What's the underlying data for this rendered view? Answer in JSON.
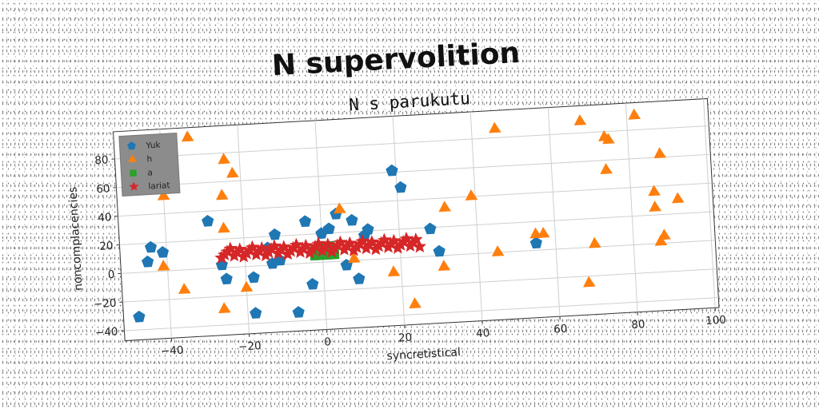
{
  "chart_data": {
    "type": "scatter",
    "title": "N supervolition",
    "subtitle": "N s parukutu",
    "xlabel": "syncretistical",
    "ylabel": "noncomplacencies",
    "xlim": [
      -52,
      101
    ],
    "ylim": [
      -47,
      99
    ],
    "xticks": [
      -40,
      -20,
      0,
      20,
      40,
      60,
      80,
      100
    ],
    "yticks": [
      -40,
      -20,
      0,
      20,
      40,
      60,
      80
    ],
    "grid": true,
    "legend_position": "top-left",
    "series": [
      {
        "name": "Yuk",
        "marker": "pentagon",
        "color": "#1f77b4",
        "points": [
          [
            -48,
            -31
          ],
          [
            -44,
            17
          ],
          [
            -45,
            7
          ],
          [
            -41,
            13
          ],
          [
            -29,
            33
          ],
          [
            -26,
            2
          ],
          [
            -25,
            -8
          ],
          [
            -18,
            -8
          ],
          [
            -18,
            -33
          ],
          [
            -14,
            12
          ],
          [
            -13,
            1
          ],
          [
            -12,
            21
          ],
          [
            -11,
            3
          ],
          [
            -7,
            -34
          ],
          [
            -4,
            29
          ],
          [
            -3,
            -15
          ],
          [
            0,
            20
          ],
          [
            2,
            23
          ],
          [
            4,
            33
          ],
          [
            6,
            -3
          ],
          [
            8,
            28
          ],
          [
            9,
            -13
          ],
          [
            11,
            17
          ],
          [
            12,
            21
          ],
          [
            19,
            61
          ],
          [
            21,
            49
          ],
          [
            28,
            19
          ],
          [
            30,
            3
          ],
          [
            55,
            5
          ]
        ]
      },
      {
        "name": "h",
        "marker": "triangle",
        "color": "#ff7f0e",
        "points": [
          [
            -33,
            92
          ],
          [
            -24,
            75
          ],
          [
            -22,
            65
          ],
          [
            -25,
            50
          ],
          [
            -40,
            52
          ],
          [
            -41,
            3
          ],
          [
            -36,
            -14
          ],
          [
            -25,
            27
          ],
          [
            -26,
            -29
          ],
          [
            -20,
            -15
          ],
          [
            5,
            36
          ],
          [
            8,
            1
          ],
          [
            18,
            -10
          ],
          [
            23,
            -33
          ],
          [
            31,
            -8
          ],
          [
            32,
            33
          ],
          [
            39,
            40
          ],
          [
            45,
            0
          ],
          [
            46,
            86
          ],
          [
            55,
            11
          ],
          [
            57,
            11
          ],
          [
            68,
            88
          ],
          [
            68,
            -25
          ],
          [
            70,
            2
          ],
          [
            74,
            76
          ],
          [
            75,
            74
          ],
          [
            74,
            53
          ],
          [
            82,
            90
          ],
          [
            86,
            36
          ],
          [
            86,
            25
          ],
          [
            87,
            1
          ],
          [
            88,
            5
          ],
          [
            88,
            62
          ],
          [
            92,
            30
          ]
        ]
      },
      {
        "name": "a",
        "marker": "square",
        "color": "#2ca02c",
        "points": [
          [
            -2,
            5
          ],
          [
            -1,
            5
          ],
          [
            0,
            5
          ],
          [
            1,
            5
          ],
          [
            2,
            5
          ],
          [
            3,
            5
          ],
          [
            -2,
            8
          ],
          [
            -1,
            8
          ],
          [
            0,
            8
          ],
          [
            1,
            8
          ],
          [
            2,
            8
          ],
          [
            3,
            8
          ],
          [
            -1,
            11
          ],
          [
            0,
            11
          ],
          [
            1,
            11
          ],
          [
            2,
            11
          ]
        ]
      },
      {
        "name": "lariat",
        "marker": "star",
        "color": "#d62728",
        "x_range": [
          -26,
          25
        ],
        "y_range": [
          7,
          13
        ]
      }
    ]
  }
}
